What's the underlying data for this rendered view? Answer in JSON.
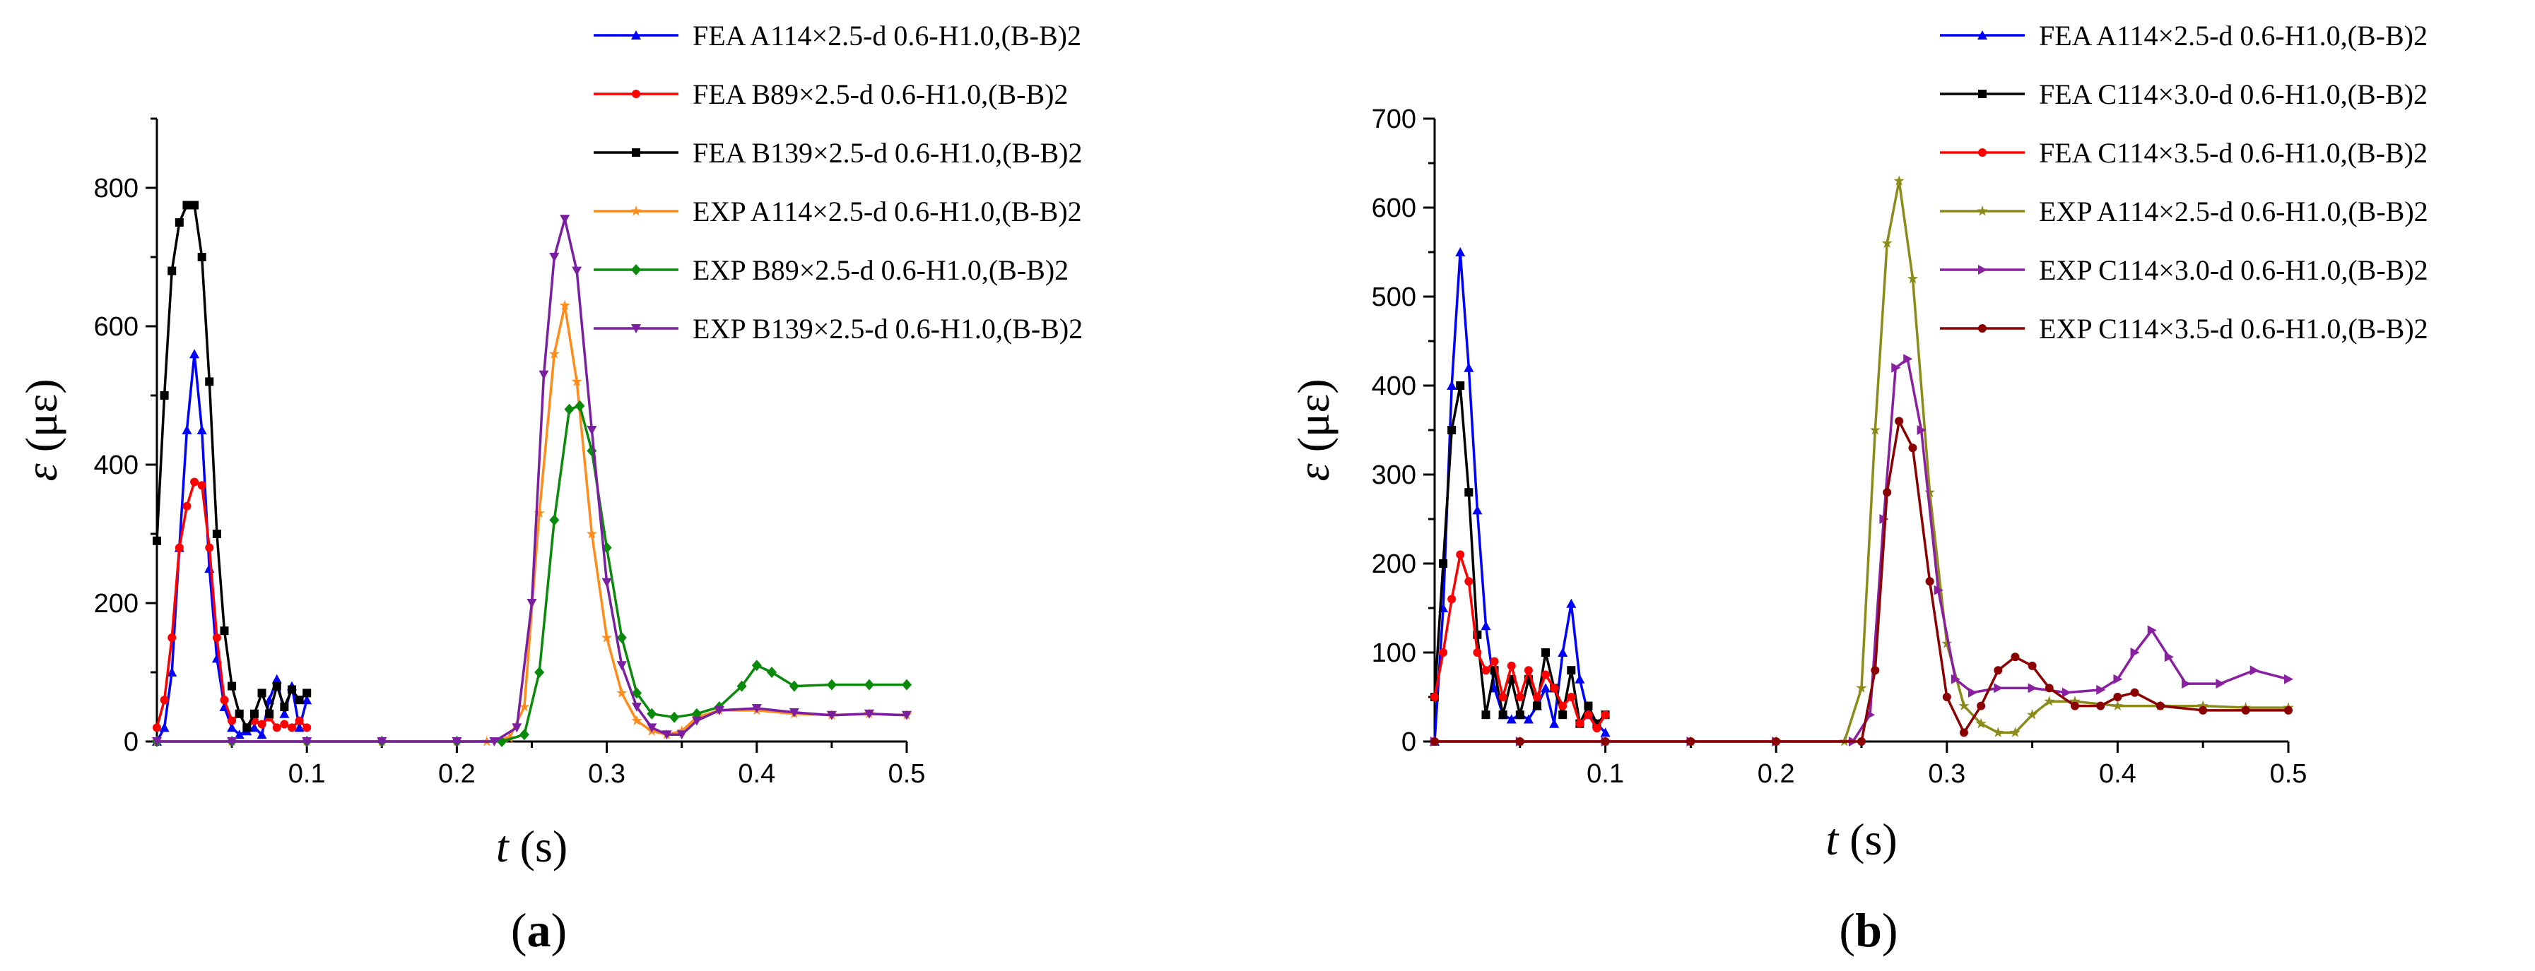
{
  "chart_data": [
    {
      "type": "line",
      "panel_label": "a",
      "xlabel_var": "t",
      "xlabel_unit": " (s)",
      "ylabel_var": "ε",
      "ylabel_unit": " (με)",
      "xlim": [
        0,
        0.5
      ],
      "ylim": [
        0,
        900
      ],
      "xticks": [
        0.1,
        0.2,
        0.3,
        0.4,
        0.5
      ],
      "yticks": [
        0,
        200,
        400,
        600,
        800
      ],
      "grid": false,
      "legend_position": "top-right",
      "series": [
        {
          "name": "FEA A114×2.5-d 0.6-H1.0,(B-B)2",
          "color": "#0000ff",
          "marker": "triangle-up",
          "x": [
            0,
            0.005,
            0.01,
            0.015,
            0.02,
            0.025,
            0.03,
            0.035,
            0.04,
            0.045,
            0.05,
            0.055,
            0.06,
            0.065,
            0.07,
            0.075,
            0.08,
            0.085,
            0.09,
            0.095,
            0.1
          ],
          "y": [
            0,
            20,
            100,
            280,
            450,
            560,
            450,
            250,
            120,
            50,
            20,
            10,
            15,
            20,
            10,
            60,
            90,
            40,
            80,
            20,
            60
          ]
        },
        {
          "name": "FEA B89×2.5-d 0.6-H1.0,(B-B)2",
          "color": "#ff0000",
          "marker": "circle",
          "x": [
            0,
            0.005,
            0.01,
            0.015,
            0.02,
            0.025,
            0.03,
            0.035,
            0.04,
            0.045,
            0.05,
            0.055,
            0.06,
            0.065,
            0.07,
            0.075,
            0.08,
            0.085,
            0.09,
            0.095,
            0.1
          ],
          "y": [
            20,
            60,
            150,
            280,
            340,
            375,
            370,
            280,
            150,
            60,
            30,
            40,
            20,
            30,
            25,
            35,
            20,
            25,
            20,
            30,
            20
          ]
        },
        {
          "name": "FEA B139×2.5-d 0.6-H1.0,(B-B)2",
          "color": "#000000",
          "marker": "square",
          "x": [
            0,
            0.005,
            0.01,
            0.015,
            0.02,
            0.025,
            0.03,
            0.035,
            0.04,
            0.045,
            0.05,
            0.055,
            0.06,
            0.065,
            0.07,
            0.075,
            0.08,
            0.085,
            0.09,
            0.095,
            0.1
          ],
          "y": [
            290,
            500,
            680,
            750,
            775,
            775,
            700,
            520,
            300,
            160,
            80,
            40,
            20,
            40,
            70,
            40,
            80,
            50,
            75,
            60,
            70
          ]
        },
        {
          "name": "EXP A114×2.5-d 0.6-H1.0,(B-B)2",
          "color": "#ff8c1a",
          "marker": "star",
          "x": [
            0,
            0.05,
            0.1,
            0.15,
            0.2,
            0.22,
            0.235,
            0.245,
            0.255,
            0.265,
            0.272,
            0.28,
            0.29,
            0.3,
            0.31,
            0.32,
            0.33,
            0.34,
            0.35,
            0.36,
            0.375,
            0.4,
            0.425,
            0.45,
            0.475,
            0.5
          ],
          "y": [
            0,
            0,
            0,
            0,
            0,
            0,
            5,
            50,
            330,
            560,
            630,
            520,
            300,
            150,
            70,
            30,
            15,
            10,
            15,
            35,
            45,
            45,
            40,
            38,
            40,
            38
          ]
        },
        {
          "name": "EXP B89×2.5-d 0.6-H1.0,(B-B)2",
          "color": "#0a8a0a",
          "marker": "diamond",
          "x": [
            0,
            0.05,
            0.1,
            0.15,
            0.2,
            0.23,
            0.245,
            0.255,
            0.265,
            0.275,
            0.282,
            0.29,
            0.3,
            0.31,
            0.32,
            0.33,
            0.345,
            0.36,
            0.375,
            0.39,
            0.4,
            0.41,
            0.425,
            0.45,
            0.475,
            0.5
          ],
          "y": [
            0,
            0,
            0,
            0,
            0,
            0,
            10,
            100,
            320,
            480,
            485,
            420,
            280,
            150,
            70,
            40,
            35,
            40,
            50,
            80,
            110,
            100,
            80,
            82,
            82,
            82
          ]
        },
        {
          "name": "EXP B139×2.5-d 0.6-H1.0,(B-B)2",
          "color": "#7b1fa2",
          "marker": "triangle-down",
          "x": [
            0,
            0.05,
            0.1,
            0.15,
            0.2,
            0.225,
            0.24,
            0.25,
            0.258,
            0.265,
            0.272,
            0.28,
            0.29,
            0.3,
            0.31,
            0.32,
            0.33,
            0.34,
            0.35,
            0.36,
            0.375,
            0.4,
            0.425,
            0.45,
            0.475,
            0.5
          ],
          "y": [
            0,
            0,
            0,
            0,
            0,
            0,
            20,
            200,
            530,
            700,
            755,
            680,
            450,
            230,
            110,
            50,
            20,
            10,
            10,
            30,
            45,
            48,
            42,
            38,
            40,
            38
          ]
        }
      ]
    },
    {
      "type": "line",
      "panel_label": "b",
      "xlabel_var": "t",
      "xlabel_unit": " (s)",
      "ylabel_var": "ε",
      "ylabel_unit": " (με)",
      "xlim": [
        0,
        0.5
      ],
      "ylim": [
        0,
        700
      ],
      "xticks": [
        0.1,
        0.2,
        0.3,
        0.4,
        0.5
      ],
      "yticks": [
        0,
        100,
        200,
        300,
        400,
        500,
        600,
        700
      ],
      "grid": false,
      "legend_position": "top-right",
      "series": [
        {
          "name": "FEA A114×2.5-d 0.6-H1.0,(B-B)2",
          "color": "#0000ff",
          "marker": "triangle-up",
          "x": [
            0,
            0.005,
            0.01,
            0.015,
            0.02,
            0.025,
            0.03,
            0.035,
            0.04,
            0.045,
            0.05,
            0.055,
            0.06,
            0.065,
            0.07,
            0.075,
            0.08,
            0.085,
            0.09,
            0.095,
            0.1
          ],
          "y": [
            0,
            150,
            400,
            550,
            420,
            260,
            130,
            60,
            30,
            25,
            30,
            25,
            40,
            60,
            20,
            100,
            155,
            70,
            30,
            20,
            10
          ]
        },
        {
          "name": "FEA C114×3.0-d 0.6-H1.0,(B-B)2",
          "color": "#000000",
          "marker": "square",
          "x": [
            0,
            0.005,
            0.01,
            0.015,
            0.02,
            0.025,
            0.03,
            0.035,
            0.04,
            0.045,
            0.05,
            0.055,
            0.06,
            0.065,
            0.07,
            0.075,
            0.08,
            0.085,
            0.09,
            0.095,
            0.1
          ],
          "y": [
            50,
            200,
            350,
            400,
            280,
            120,
            30,
            80,
            30,
            70,
            30,
            70,
            40,
            100,
            60,
            30,
            80,
            20,
            40,
            20,
            30
          ]
        },
        {
          "name": "FEA C114×3.5-d 0.6-H1.0,(B-B)2",
          "color": "#ff0000",
          "marker": "circle",
          "x": [
            0,
            0.005,
            0.01,
            0.015,
            0.02,
            0.025,
            0.03,
            0.035,
            0.04,
            0.045,
            0.05,
            0.055,
            0.06,
            0.065,
            0.07,
            0.075,
            0.08,
            0.085,
            0.09,
            0.095,
            0.1
          ],
          "y": [
            50,
            100,
            160,
            210,
            180,
            100,
            80,
            90,
            50,
            85,
            50,
            80,
            50,
            75,
            60,
            40,
            50,
            20,
            30,
            15,
            30
          ]
        },
        {
          "name": "EXP A114×2.5-d 0.6-H1.0,(B-B)2",
          "color": "#8b8b1a",
          "marker": "star",
          "x": [
            0,
            0.05,
            0.1,
            0.15,
            0.2,
            0.24,
            0.25,
            0.258,
            0.265,
            0.272,
            0.28,
            0.29,
            0.3,
            0.31,
            0.32,
            0.33,
            0.34,
            0.35,
            0.36,
            0.375,
            0.4,
            0.425,
            0.45,
            0.475,
            0.5
          ],
          "y": [
            0,
            0,
            0,
            0,
            0,
            0,
            60,
            350,
            560,
            630,
            520,
            280,
            110,
            40,
            20,
            10,
            10,
            30,
            45,
            45,
            40,
            40,
            40,
            38,
            38
          ]
        },
        {
          "name": "EXP C114×3.0-d 0.6-H1.0,(B-B)2",
          "color": "#8b1fa2",
          "marker": "triangle-right",
          "x": [
            0,
            0.05,
            0.1,
            0.15,
            0.2,
            0.245,
            0.255,
            0.263,
            0.27,
            0.277,
            0.285,
            0.295,
            0.305,
            0.315,
            0.33,
            0.35,
            0.37,
            0.39,
            0.4,
            0.41,
            0.42,
            0.43,
            0.44,
            0.46,
            0.48,
            0.5
          ],
          "y": [
            0,
            0,
            0,
            0,
            0,
            0,
            30,
            250,
            420,
            430,
            350,
            170,
            70,
            55,
            60,
            60,
            55,
            58,
            70,
            100,
            125,
            95,
            65,
            65,
            80,
            70
          ]
        },
        {
          "name": "EXP C114×3.5-d 0.6-H1.0,(B-B)2",
          "color": "#8b0000",
          "marker": "circle",
          "x": [
            0,
            0.05,
            0.1,
            0.15,
            0.2,
            0.25,
            0.258,
            0.265,
            0.272,
            0.28,
            0.29,
            0.3,
            0.31,
            0.32,
            0.33,
            0.34,
            0.35,
            0.36,
            0.375,
            0.39,
            0.4,
            0.41,
            0.425,
            0.45,
            0.475,
            0.5
          ],
          "y": [
            0,
            0,
            0,
            0,
            0,
            0,
            80,
            280,
            360,
            330,
            180,
            50,
            10,
            40,
            80,
            95,
            85,
            60,
            40,
            40,
            50,
            55,
            40,
            35,
            35,
            35
          ]
        }
      ]
    }
  ]
}
